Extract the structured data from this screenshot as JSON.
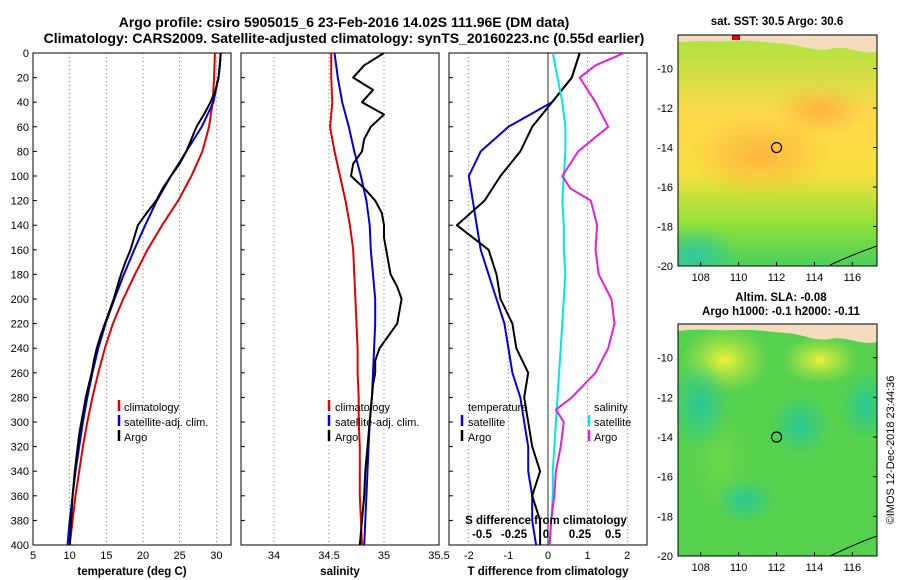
{
  "header": {
    "line1": "Argo profile: csiro 5905015_6 23-Feb-2016 14.02S 111.96E (DM data)",
    "line2": "Climatology: CARS2009. Satellite-adjusted climatology: synTS_20160223.nc (0.55d earlier)"
  },
  "colors": {
    "clim": "#e00000",
    "sat": "#0000dd",
    "argo": "#000000",
    "sat_s": "#00e5ee",
    "clim_s": "#e020e0"
  },
  "chart_data": [
    {
      "type": "line",
      "name": "temperature",
      "xlabel": "temperature (deg C)",
      "ylabel": "depth",
      "xlim": [
        5,
        32
      ],
      "ylim": [
        400,
        0
      ],
      "xticks": [
        5,
        10,
        15,
        20,
        25,
        30
      ],
      "yticks": [
        0,
        20,
        40,
        60,
        80,
        100,
        120,
        140,
        160,
        180,
        200,
        220,
        240,
        260,
        280,
        300,
        320,
        340,
        360,
        380,
        400
      ],
      "legend": [
        "climatology",
        "satellite-adj. clim.",
        "Argo"
      ],
      "series": [
        {
          "name": "climatology",
          "depth": [
            0,
            20,
            40,
            60,
            80,
            100,
            120,
            140,
            160,
            180,
            200,
            220,
            240,
            260,
            280,
            300,
            320,
            340,
            360,
            380,
            400
          ],
          "values": [
            29.8,
            29.7,
            29.5,
            29.0,
            28.1,
            26.6,
            24.8,
            22.6,
            20.6,
            18.9,
            17.3,
            15.9,
            14.8,
            13.9,
            13.1,
            12.4,
            11.8,
            11.3,
            10.8,
            10.4,
            10.0
          ]
        },
        {
          "name": "satellite-adj. clim.",
          "depth": [
            0,
            20,
            40,
            60,
            80,
            100,
            120,
            140,
            160,
            180,
            200,
            220,
            240,
            260,
            280,
            300,
            320,
            340,
            360,
            380,
            400
          ],
          "values": [
            30.6,
            30.3,
            29.6,
            28.0,
            25.9,
            23.8,
            21.9,
            20.3,
            18.8,
            17.4,
            16.1,
            14.9,
            13.9,
            13.1,
            12.4,
            11.8,
            11.3,
            10.8,
            10.4,
            10.0,
            9.7
          ]
        },
        {
          "name": "Argo",
          "depth": [
            0,
            10,
            20,
            30,
            40,
            50,
            60,
            70,
            80,
            90,
            100,
            110,
            120,
            130,
            140,
            150,
            160,
            170,
            180,
            190,
            200,
            210,
            220,
            230,
            240,
            250,
            260,
            270,
            280,
            290,
            300,
            310,
            320,
            340,
            360,
            380,
            400
          ],
          "values": [
            30.6,
            30.5,
            30.3,
            29.9,
            29.2,
            28.3,
            27.3,
            26.6,
            25.9,
            25.0,
            23.8,
            22.7,
            21.8,
            20.5,
            19.3,
            18.8,
            18.3,
            17.6,
            17.0,
            16.5,
            16.0,
            15.4,
            14.8,
            14.2,
            13.7,
            13.3,
            13.0,
            12.6,
            12.2,
            11.9,
            11.6,
            11.3,
            11.1,
            10.7,
            10.4,
            10.2,
            10.0
          ]
        }
      ]
    },
    {
      "type": "line",
      "name": "salinity",
      "xlabel": "salinity",
      "xlim": [
        33.7,
        35.5
      ],
      "ylim": [
        400,
        0
      ],
      "xticks": [
        34,
        34.5,
        35,
        35.5
      ],
      "xticklabels": [
        "34",
        "34.5",
        "35",
        "35.5"
      ],
      "legend": [
        "climatology",
        "satellite-adj. clim.",
        "Argo"
      ],
      "series": [
        {
          "name": "climatology",
          "depth": [
            0,
            20,
            40,
            50,
            60,
            80,
            100,
            120,
            140,
            160,
            180,
            200,
            220,
            240,
            260,
            280,
            300,
            320,
            340,
            360,
            380,
            400
          ],
          "values": [
            34.52,
            34.52,
            34.53,
            34.52,
            34.51,
            34.55,
            34.6,
            34.65,
            34.69,
            34.72,
            34.73,
            34.74,
            34.75,
            34.76,
            34.76,
            34.77,
            34.77,
            34.78,
            34.78,
            34.78,
            34.79,
            34.8
          ]
        },
        {
          "name": "satellite-adj. clim.",
          "depth": [
            0,
            20,
            40,
            60,
            80,
            100,
            120,
            140,
            160,
            180,
            200,
            220,
            240,
            260,
            280,
            300,
            320,
            340,
            360,
            380,
            400
          ],
          "values": [
            34.55,
            34.58,
            34.62,
            34.68,
            34.73,
            34.79,
            34.84,
            34.87,
            34.88,
            34.9,
            34.92,
            34.92,
            34.91,
            34.9,
            34.89,
            34.87,
            34.86,
            34.85,
            34.84,
            34.83,
            34.82
          ]
        },
        {
          "name": "Argo",
          "depth": [
            0,
            10,
            20,
            30,
            40,
            50,
            60,
            70,
            80,
            90,
            100,
            110,
            120,
            130,
            140,
            150,
            160,
            170,
            180,
            190,
            200,
            210,
            220,
            230,
            240,
            250,
            260,
            270,
            280,
            290,
            300,
            320,
            340,
            360,
            380,
            400
          ],
          "values": [
            35.0,
            34.82,
            34.72,
            34.9,
            34.8,
            35.0,
            34.88,
            34.82,
            34.8,
            34.72,
            34.7,
            34.82,
            34.92,
            34.98,
            35.0,
            35.0,
            35.02,
            35.04,
            35.06,
            35.12,
            35.16,
            35.14,
            35.12,
            35.04,
            34.96,
            34.92,
            34.92,
            34.9,
            34.89,
            34.88,
            34.87,
            34.85,
            34.83,
            34.82,
            34.8,
            34.78
          ]
        }
      ]
    },
    {
      "type": "line",
      "name": "difference from climatology",
      "xlabel": "T difference from climatology",
      "x2label": "S difference from climatology",
      "xlim": [
        -2.5,
        2.5
      ],
      "ylim": [
        400,
        0
      ],
      "xticks": [
        -2,
        -1,
        0,
        1,
        2
      ],
      "x2ticks": [
        "-0.5",
        "-0.25",
        "0",
        "0.25",
        "0.5"
      ],
      "legend_temperature": {
        "title": "temperature",
        "items": [
          "satellite",
          "Argo"
        ]
      },
      "legend_salinity": {
        "title": "salinity",
        "items": [
          "satellite",
          "Argo"
        ]
      },
      "series": [
        {
          "name": "temperature satellite",
          "depth": [
            0,
            20,
            40,
            60,
            80,
            100,
            120,
            140,
            160,
            180,
            200,
            220,
            240,
            260,
            280,
            300,
            320,
            340,
            360,
            380,
            400
          ],
          "values": [
            0.8,
            0.6,
            0.1,
            -1.0,
            -1.7,
            -2.0,
            -1.9,
            -1.8,
            -1.7,
            -1.5,
            -1.3,
            -1.1,
            -1.0,
            -0.9,
            -0.7,
            -0.6,
            -0.5,
            -0.5,
            -0.4,
            -0.4,
            -0.3
          ]
        },
        {
          "name": "temperature Argo",
          "depth": [
            0,
            20,
            40,
            60,
            80,
            100,
            120,
            140,
            160,
            180,
            200,
            220,
            240,
            260,
            280,
            300,
            320,
            340,
            360,
            380,
            400
          ],
          "values": [
            0.8,
            0.6,
            0.1,
            -0.4,
            -0.7,
            -1.2,
            -1.6,
            -2.3,
            -1.5,
            -1.3,
            -1.2,
            -0.9,
            -0.8,
            -0.5,
            -0.6,
            -0.5,
            -0.4,
            -0.2,
            -0.4,
            -0.2,
            -0.2
          ]
        },
        {
          "name": "salinity satellite",
          "depth": [
            0,
            20,
            40,
            60,
            80,
            100,
            120,
            140,
            160,
            180,
            200,
            220,
            240,
            260,
            280,
            300,
            320,
            340,
            360,
            380,
            400
          ],
          "values": [
            0.03,
            0.06,
            0.09,
            0.11,
            0.11,
            0.1,
            0.09,
            0.1,
            0.1,
            0.11,
            0.1,
            0.09,
            0.08,
            0.07,
            0.06,
            0.05,
            0.04,
            0.03,
            0.03,
            0.02,
            0.01
          ]
        },
        {
          "name": "salinity Argo",
          "depth": [
            0,
            10,
            20,
            40,
            60,
            80,
            100,
            110,
            120,
            140,
            160,
            180,
            200,
            220,
            240,
            260,
            280,
            290,
            300,
            320,
            340,
            360,
            380,
            400
          ],
          "values": [
            0.48,
            0.3,
            0.2,
            0.3,
            0.38,
            0.19,
            0.09,
            0.14,
            0.27,
            0.31,
            0.3,
            0.32,
            0.4,
            0.42,
            0.38,
            0.3,
            0.15,
            0.05,
            0.1,
            0.08,
            0.05,
            0.04,
            0.02,
            0.01
          ]
        }
      ]
    },
    {
      "type": "heatmap",
      "name": "satellite SST map",
      "title": "sat. SST: 30.5  Argo: 30.6",
      "xlim": [
        106.8,
        117.3
      ],
      "ylim": [
        -20,
        -8.3
      ],
      "xticks": [
        108,
        110,
        112,
        114,
        116
      ],
      "yticks": [
        -10,
        -12,
        -14,
        -16,
        -18,
        -20
      ],
      "argo_position": {
        "lon": 112,
        "lat": -14
      }
    },
    {
      "type": "heatmap",
      "name": "altimetry SLA map",
      "title_line1": "Altim. SLA: -0.08",
      "title_line2": "Argo h1000: -0.1 h2000: -0.11",
      "xlim": [
        106.8,
        117.3
      ],
      "ylim": [
        -20,
        -8.3
      ],
      "xticks": [
        108,
        110,
        112,
        114,
        116
      ],
      "yticks": [
        -10,
        -12,
        -14,
        -16,
        -18,
        -20
      ],
      "argo_position": {
        "lon": 112,
        "lat": -14
      }
    }
  ],
  "stamp": "©IMOS 12-Dec-2018 23:44:36"
}
